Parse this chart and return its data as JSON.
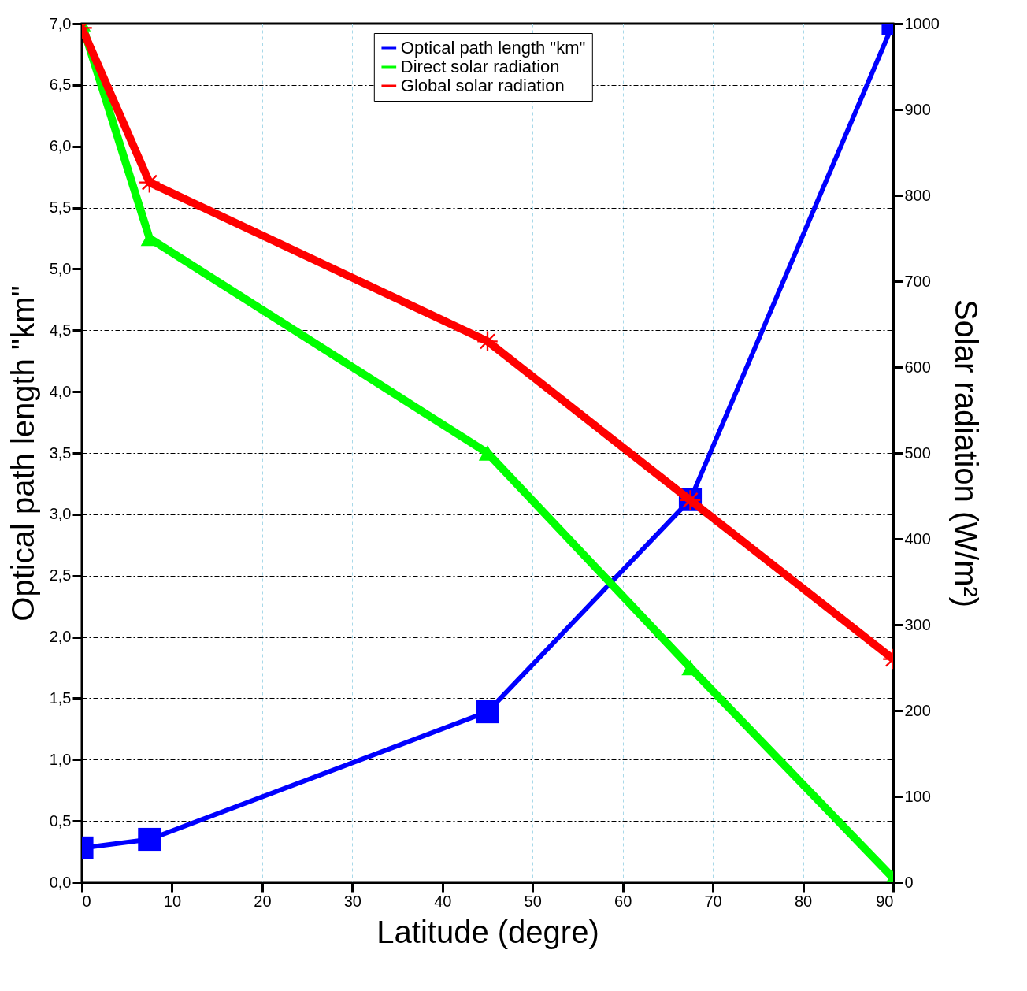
{
  "chart_data": {
    "type": "line",
    "xlabel": "Latitude (degre)",
    "ylabel": "Optical path length \"km\"",
    "y2label": "Solar radiation (W/m²)",
    "x": [
      0,
      7.5,
      45,
      67.5,
      90
    ],
    "xlim": [
      0,
      90
    ],
    "xticks": [
      0,
      10,
      20,
      30,
      40,
      50,
      60,
      70,
      80,
      90
    ],
    "ylim": [
      0,
      7
    ],
    "yticks": [
      {
        "value": 0,
        "label": "0,0"
      },
      {
        "value": 0.5,
        "label": "0,5"
      },
      {
        "value": 1,
        "label": "1,0"
      },
      {
        "value": 1.5,
        "label": "1,5"
      },
      {
        "value": 2,
        "label": "2,0"
      },
      {
        "value": 2.5,
        "label": "2,5"
      },
      {
        "value": 3,
        "label": "3,0"
      },
      {
        "value": 3.5,
        "label": "3,5"
      },
      {
        "value": 4,
        "label": "4,0"
      },
      {
        "value": 4.5,
        "label": "4,5"
      },
      {
        "value": 5,
        "label": "5,0"
      },
      {
        "value": 5.5,
        "label": "5,5"
      },
      {
        "value": 6,
        "label": "6,0"
      },
      {
        "value": 6.5,
        "label": "6,5"
      },
      {
        "value": 7,
        "label": "7,0"
      }
    ],
    "y2lim": [
      0,
      1000
    ],
    "y2ticks": [
      0,
      100,
      200,
      300,
      400,
      500,
      600,
      700,
      800,
      900,
      1000
    ],
    "grid": true,
    "legend": "top",
    "series": [
      {
        "name": "Optical path length \"km\"",
        "color": "#0000ff",
        "marker": "square",
        "values": [
          0.28,
          0.35,
          1.39,
          3.12,
          7.0
        ]
      },
      {
        "name": "Direct solar radiation",
        "color": "#00ff00",
        "marker": "triangle",
        "axis": "y2",
        "values": [
          1000,
          750,
          500,
          250,
          5
        ]
      },
      {
        "name": "Global solar radiation",
        "color": "#ff0000",
        "marker": "cross",
        "axis": "y2",
        "values": [
          995,
          815,
          630,
          445,
          260
        ]
      }
    ]
  }
}
